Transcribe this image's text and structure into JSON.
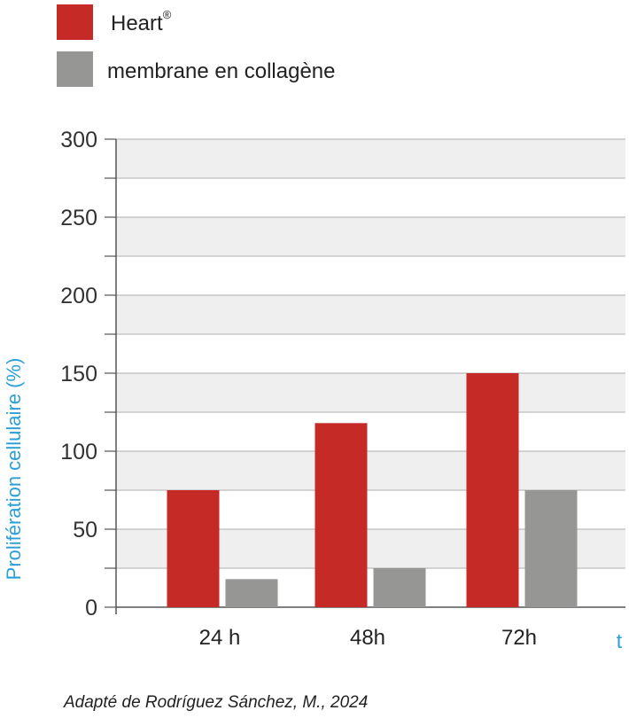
{
  "legend": [
    {
      "label": "Heart",
      "sup": "®",
      "color": "#c62a26"
    },
    {
      "label": "membrane en collagène",
      "sup": "",
      "color": "#969694"
    }
  ],
  "chart_data": {
    "type": "bar",
    "categories": [
      "24 h",
      "48h",
      "72h"
    ],
    "series": [
      {
        "name": "Heart®",
        "values": [
          75,
          118,
          150
        ],
        "color": "#c62a26"
      },
      {
        "name": "membrane en collagène",
        "values": [
          18,
          25,
          75
        ],
        "color": "#969694"
      }
    ],
    "ylabel": "Prolifération cellulaire (%)",
    "xlabel": "t",
    "ylim": [
      0,
      300
    ],
    "yticks": [
      0,
      50,
      100,
      150,
      200,
      250,
      300
    ],
    "grid": true,
    "axis_label_color": "#2a9fd8",
    "band_color": "#efefef",
    "legend_position": "top-left"
  },
  "source_note": "Adapté de Rodríguez Sánchez, M., 2024"
}
